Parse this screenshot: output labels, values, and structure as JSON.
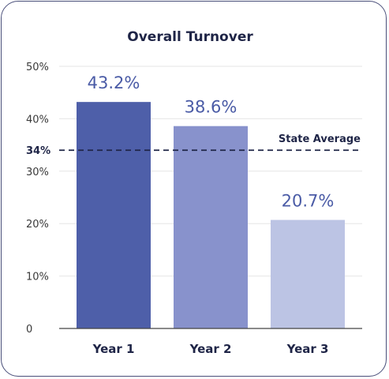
{
  "chart_data": {
    "type": "bar",
    "title": "Overall Turnover",
    "xlabel": "",
    "ylabel": "",
    "categories": [
      "Year 1",
      "Year 2",
      "Year 3"
    ],
    "values": [
      43.2,
      38.6,
      20.7
    ],
    "value_labels": [
      "43.2%",
      "38.6%",
      "20.7%"
    ],
    "bar_colors": [
      "#4e5fa9",
      "#8892cc",
      "#bcc4e4"
    ],
    "ylim": [
      0,
      50
    ],
    "yticks": [
      0,
      10,
      20,
      30,
      40,
      50
    ],
    "ytick_labels": [
      "0",
      "10%",
      "20%",
      "30%",
      "40%",
      "50%"
    ],
    "grid": true,
    "reference_line": {
      "value": 34,
      "label": "State Average",
      "tick_label": "34%",
      "color": "#1f2547",
      "style": "dashed"
    }
  }
}
